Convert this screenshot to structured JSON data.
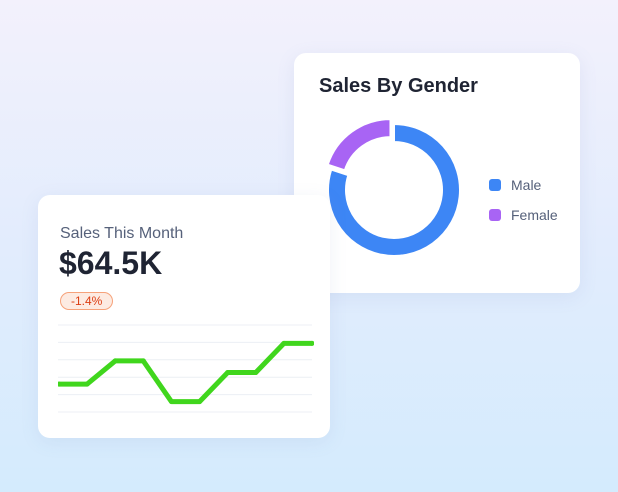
{
  "gender_card": {
    "title": "Sales By Gender"
  },
  "sales_card": {
    "label": "Sales This Month",
    "value": "$64.5K",
    "change": "-1.4%"
  },
  "colors": {
    "male": "#3d86f5",
    "female": "#a864f4",
    "line": "#40d61d",
    "badge_text": "#dc3d12",
    "badge_bg": "#fdebe2"
  },
  "chart_data": [
    {
      "type": "pie",
      "variant": "donut",
      "title": "Sales By Gender",
      "categories": [
        "Male",
        "Female"
      ],
      "values": [
        80,
        20
      ],
      "colors": [
        "#3d86f5",
        "#a864f4"
      ],
      "legend": "right",
      "female_slice_offset": true
    },
    {
      "type": "line",
      "title": "",
      "x": [
        1,
        2,
        3,
        4,
        5,
        6,
        7,
        8,
        9,
        10
      ],
      "y": [
        0,
        0,
        1,
        1,
        -0.75,
        -0.75,
        0.5,
        0.5,
        1.75,
        1.75
      ],
      "ylim": [
        -1.5,
        2.8
      ],
      "grid": true,
      "axes_labels_visible": false,
      "color": "#40d61d"
    }
  ]
}
